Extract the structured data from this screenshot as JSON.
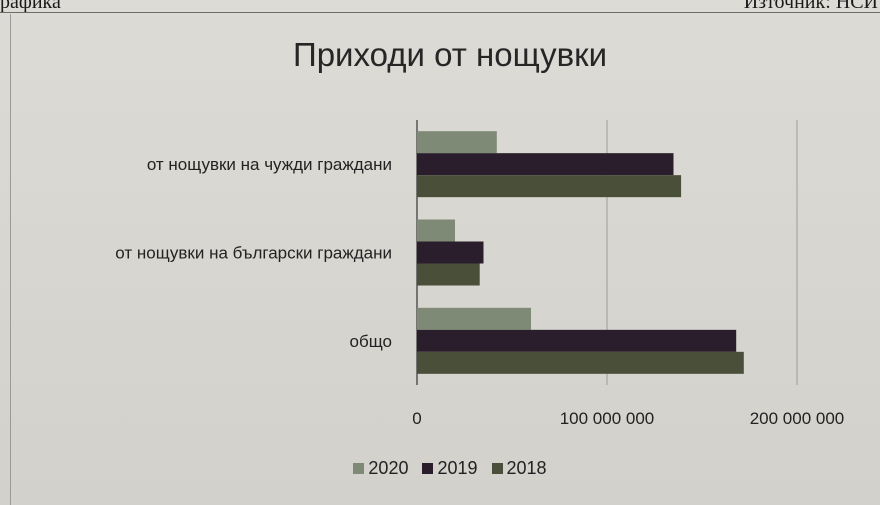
{
  "header": {
    "left_text": "рафика",
    "right_text": "Източник: НСИ"
  },
  "colors": {
    "2020": "#7f8a76",
    "2019": "#2b1e2c",
    "2018": "#4a4f3a",
    "grid": "#9c9c9c",
    "axis": "#555555"
  },
  "chart_data": {
    "type": "bar",
    "orientation": "horizontal",
    "title": "Приходи от нощувки",
    "categories": [
      "от нощувки на чужди граждани",
      "от нощувки на български граждани",
      "общо"
    ],
    "series": [
      {
        "name": "2020",
        "values": [
          42000000,
          20000000,
          60000000
        ]
      },
      {
        "name": "2019",
        "values": [
          135000000,
          35000000,
          168000000
        ]
      },
      {
        "name": "2018",
        "values": [
          139000000,
          33000000,
          172000000
        ]
      }
    ],
    "xlim": [
      0,
      200000000
    ],
    "xticks": [
      0,
      100000000,
      200000000
    ],
    "xtick_labels": [
      "0",
      "100 000 000",
      "200 000 000"
    ],
    "grid": true,
    "legend_position": "bottom",
    "legend": [
      "2020",
      "2019",
      "2018"
    ]
  }
}
